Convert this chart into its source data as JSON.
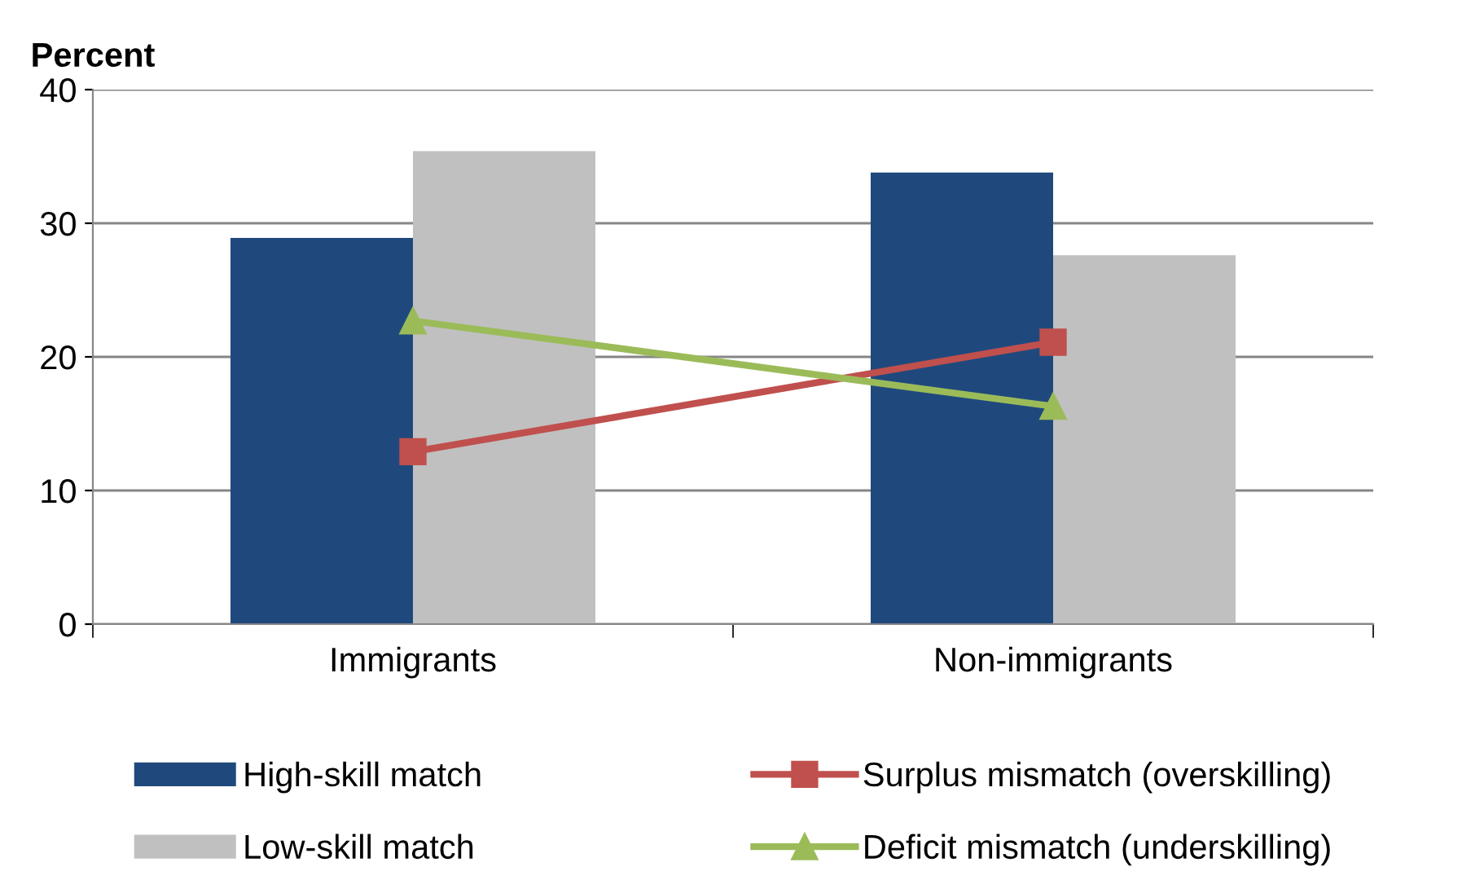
{
  "chart_data": {
    "type": "bar",
    "ylabel": "Percent",
    "categories": [
      "Immigrants",
      "Non-immigrants"
    ],
    "series": [
      {
        "name": "High-skill match",
        "color": "#1f497d",
        "values": [
          28.9,
          33.8
        ]
      },
      {
        "name": "Low-skill match",
        "color": "#c0c0c0",
        "values": [
          35.4,
          27.6
        ]
      },
      {
        "name": "Surplus mismatch (overskilling)",
        "color": "#c0504d",
        "type": "line",
        "marker": "square",
        "values": [
          12.9,
          21.1
        ]
      },
      {
        "name": "Deficit mismatch (underskilling)",
        "color": "#9bbb59",
        "type": "line",
        "marker": "triangle",
        "values": [
          22.7,
          16.3
        ]
      }
    ],
    "ylim": [
      0,
      40
    ],
    "yticks": [
      0,
      10,
      20,
      30,
      40
    ],
    "grid": "y",
    "legend": "bottom"
  }
}
